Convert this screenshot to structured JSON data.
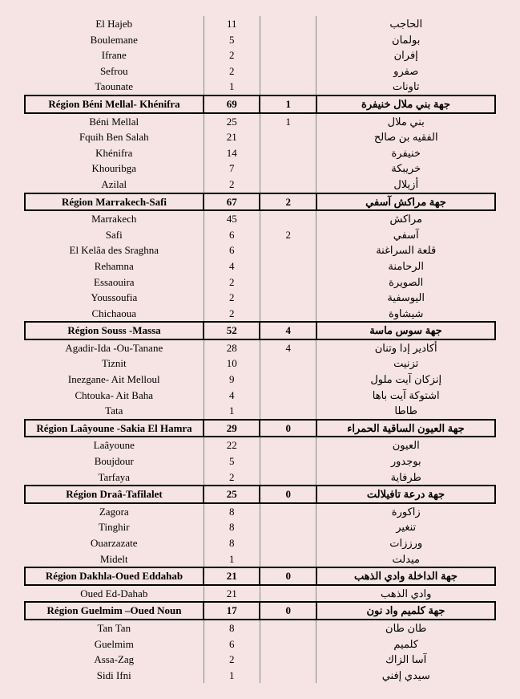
{
  "styling": {
    "background_color": "#f6e4e4",
    "header_border_color": "#000000",
    "data_border_color": "#888888",
    "font_size": 13,
    "header_font_weight": "bold",
    "col_widths_pct": [
      38,
      12,
      12,
      38
    ]
  },
  "rows": [
    {
      "type": "data",
      "fr": "El  Hajeb",
      "n1": "11",
      "n2": "",
      "ar": "الحاجب"
    },
    {
      "type": "data",
      "fr": "Boulemane",
      "n1": "5",
      "n2": "",
      "ar": "بولمان"
    },
    {
      "type": "data",
      "fr": "Ifrane",
      "n1": "2",
      "n2": "",
      "ar": "إفران"
    },
    {
      "type": "data",
      "fr": "Sefrou",
      "n1": "2",
      "n2": "",
      "ar": "صفرو"
    },
    {
      "type": "data",
      "fr": "Taounate",
      "n1": "1",
      "n2": "",
      "ar": "تاونات"
    },
    {
      "type": "header",
      "fr": "Région Béni Mellal- Khénifra",
      "n1": "69",
      "n2": "1",
      "ar": "جهة بني ملال خنيفرة"
    },
    {
      "type": "data",
      "fr": "Béni Mellal",
      "n1": "25",
      "n2": "1",
      "ar": "بني ملال"
    },
    {
      "type": "data",
      "fr": "Fquih Ben Salah",
      "n1": "21",
      "n2": "",
      "ar": "الفقيه بن صالح"
    },
    {
      "type": "data",
      "fr": "Khénifra",
      "n1": "14",
      "n2": "",
      "ar": "خنيفرة"
    },
    {
      "type": "data",
      "fr": "Khouribga",
      "n1": "7",
      "n2": "",
      "ar": "خريبكة"
    },
    {
      "type": "data",
      "fr": "Azilal",
      "n1": "2",
      "n2": "",
      "ar": "أزيلال"
    },
    {
      "type": "header",
      "fr": "Région Marrakech-Safi",
      "n1": "67",
      "n2": "2",
      "ar": "جهة مراكش آسفي"
    },
    {
      "type": "data",
      "fr": "Marrakech",
      "n1": "45",
      "n2": "",
      "ar": "مراكش"
    },
    {
      "type": "data",
      "fr": "Safi",
      "n1": "6",
      "n2": "2",
      "ar": "آسفي"
    },
    {
      "type": "data",
      "fr": "El Kelâa des Sraghna",
      "n1": "6",
      "n2": "",
      "ar": "قلعة السراغنة"
    },
    {
      "type": "data",
      "fr": "Rehamna",
      "n1": "4",
      "n2": "",
      "ar": "الرحامنة"
    },
    {
      "type": "data",
      "fr": "Essaouira",
      "n1": "2",
      "n2": "",
      "ar": "الصويرة"
    },
    {
      "type": "data",
      "fr": "Youssoufia",
      "n1": "2",
      "n2": "",
      "ar": "اليوسفية"
    },
    {
      "type": "data",
      "fr": "Chichaoua",
      "n1": "2",
      "n2": "",
      "ar": "شيشاوة"
    },
    {
      "type": "header",
      "fr": "Région Souss -Massa",
      "n1": "52",
      "n2": "4",
      "ar": "جهة سوس ماسة"
    },
    {
      "type": "data",
      "fr": "Agadir-Ida -Ou-Tanane",
      "n1": "28",
      "n2": "4",
      "ar": "أكادير إدا وتنان"
    },
    {
      "type": "data",
      "fr": "Tiznit",
      "n1": "10",
      "n2": "",
      "ar": "تزنيت"
    },
    {
      "type": "data",
      "fr": "Inezgane- Ait Melloul",
      "n1": "9",
      "n2": "",
      "ar": "إنزكان آيت ملول"
    },
    {
      "type": "data",
      "fr": "Chtouka- Ait Baha",
      "n1": "4",
      "n2": "",
      "ar": "اشتوكة آيت باها"
    },
    {
      "type": "data",
      "fr": "Tata",
      "n1": "1",
      "n2": "",
      "ar": "طاطا"
    },
    {
      "type": "header",
      "fr": "Région Laâyoune -Sakia El Hamra",
      "n1": "29",
      "n2": "0",
      "ar": "جهة العيون الساقية الحمراء"
    },
    {
      "type": "data",
      "fr": "Laâyoune",
      "n1": "22",
      "n2": "",
      "ar": "العيون"
    },
    {
      "type": "data",
      "fr": "Boujdour",
      "n1": "5",
      "n2": "",
      "ar": "بوجدور"
    },
    {
      "type": "data",
      "fr": "Tarfaya",
      "n1": "2",
      "n2": "",
      "ar": "طرفاية"
    },
    {
      "type": "header",
      "fr": "Région Draâ-Tafilalet",
      "n1": "25",
      "n2": "0",
      "ar": "جهة درعة تافيلالت"
    },
    {
      "type": "data",
      "fr": "Zagora",
      "n1": "8",
      "n2": "",
      "ar": "زاكورة"
    },
    {
      "type": "data",
      "fr": "Tinghir",
      "n1": "8",
      "n2": "",
      "ar": "تنغير"
    },
    {
      "type": "data",
      "fr": "Ouarzazate",
      "n1": "8",
      "n2": "",
      "ar": "ورززات"
    },
    {
      "type": "data",
      "fr": "Midelt",
      "n1": "1",
      "n2": "",
      "ar": "ميدلت"
    },
    {
      "type": "header",
      "fr": "Région Dakhla-Oued Eddahab",
      "n1": "21",
      "n2": "0",
      "ar": "جهة الداخلة وادي الذهب"
    },
    {
      "type": "data",
      "fr": "Oued Ed-Dahab",
      "n1": "21",
      "n2": "",
      "ar": "وادي الذهب"
    },
    {
      "type": "header",
      "fr": "Région Guelmim –Oued Noun",
      "n1": "17",
      "n2": "0",
      "ar": "جهة كلميم واد نون"
    },
    {
      "type": "data",
      "fr": "Tan Tan",
      "n1": "8",
      "n2": "",
      "ar": "طان طان"
    },
    {
      "type": "data",
      "fr": "Guelmim",
      "n1": "6",
      "n2": "",
      "ar": "كلميم"
    },
    {
      "type": "data",
      "fr": "Assa-Zag",
      "n1": "2",
      "n2": "",
      "ar": "آسا الزاك"
    },
    {
      "type": "data",
      "fr": "Sidi Ifni",
      "n1": "1",
      "n2": "",
      "ar": "سيدي إفني"
    }
  ]
}
